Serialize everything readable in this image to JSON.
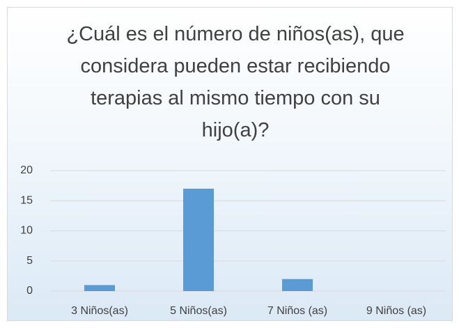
{
  "chart_data": {
    "type": "bar",
    "title": "¿Cuál es el número de niños(as), que considera pueden estar recibiendo terapias al mismo tiempo con su hijo(a)?",
    "categories": [
      "3 Niños(as)",
      "5 Niños(as)",
      "7 Niños (as)",
      "9 Niños (as)"
    ],
    "values": [
      1,
      17,
      2,
      0
    ],
    "color": "#5b9bd5",
    "ylim": [
      0,
      20
    ],
    "yticks": [
      0,
      5,
      10,
      15,
      20
    ],
    "grid": true
  }
}
